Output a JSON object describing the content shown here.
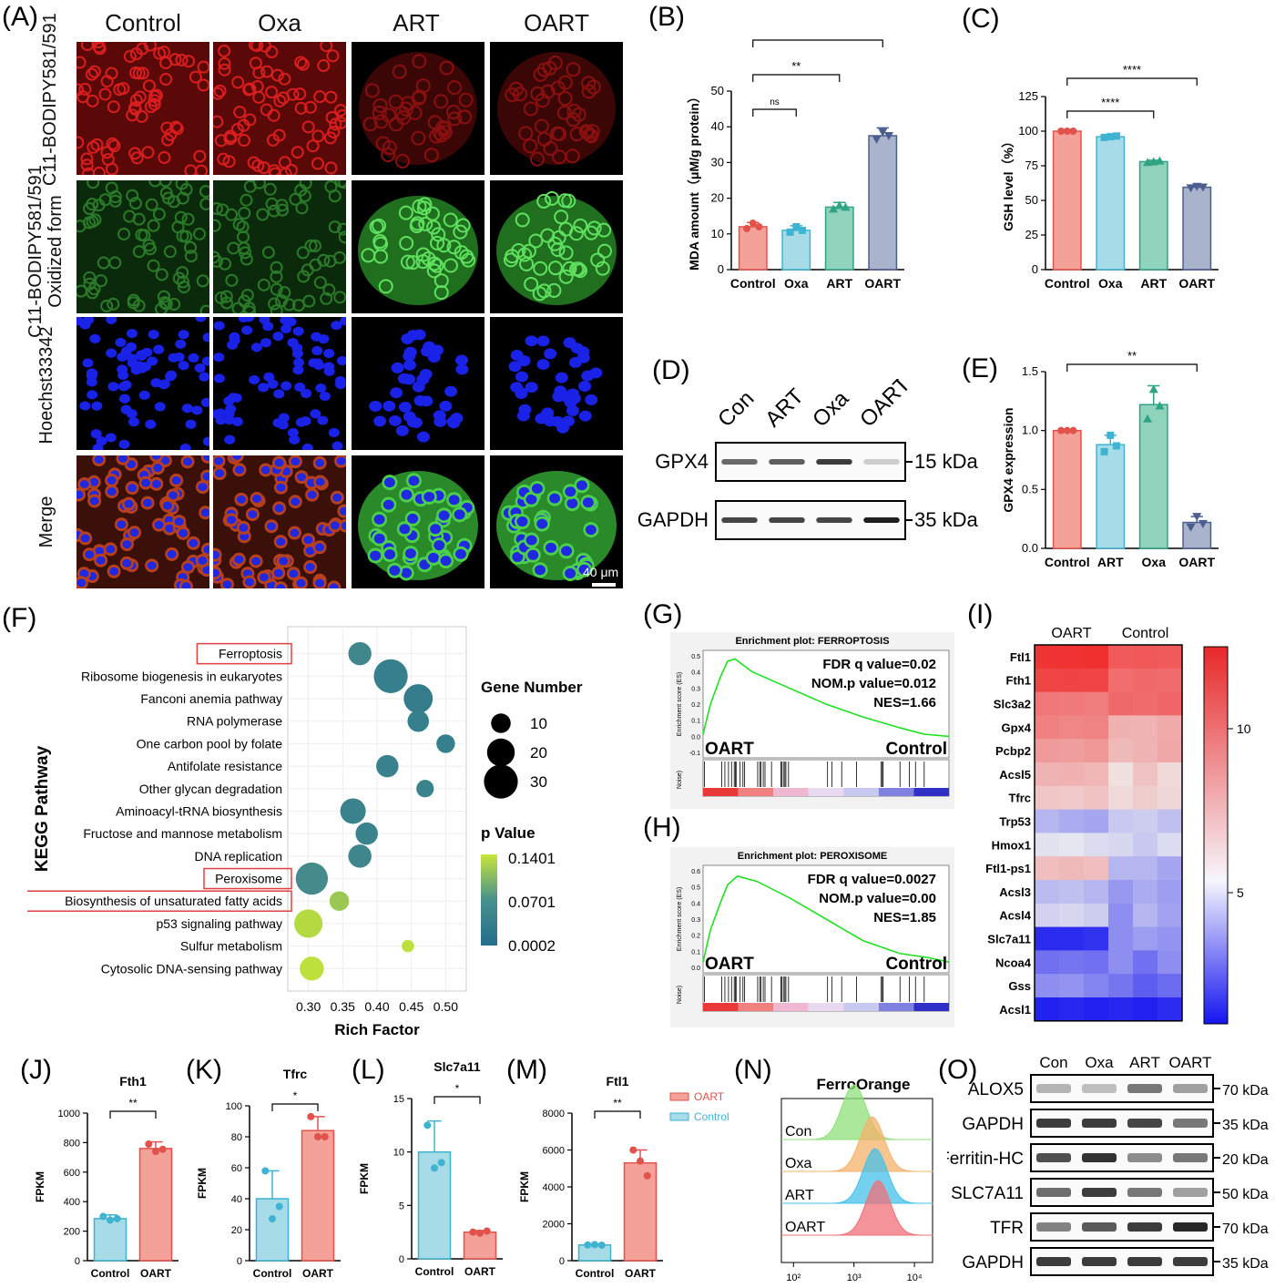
{
  "panel_labels": [
    "(A)",
    "(B)",
    "(C)",
    "(D)",
    "(E)",
    "(F)",
    "(G)",
    "(H)",
    "(I)",
    "(J)",
    "(K)",
    "(L)",
    "(M)",
    "(N)",
    "(O)"
  ],
  "panelA": {
    "columns": [
      "Control",
      "Oxa",
      "ART",
      "OART"
    ],
    "rows": [
      "C11-BODIPY581/591",
      "C11-BODIPY581/591 Oxidized form",
      "Hoechst33342",
      "Merge"
    ],
    "row_colors": [
      "#c01818",
      "#1c8a1c",
      "#1818d8",
      "#c04020"
    ],
    "scalebar": "40 μm"
  },
  "chart_data": [
    {
      "panel": "B",
      "type": "bar",
      "categories": [
        "Control",
        "Oxa",
        "ART",
        "OART"
      ],
      "values": [
        12,
        11,
        17.5,
        37.5
      ],
      "errors": [
        1.2,
        1.3,
        1.3,
        2.2
      ],
      "points": [
        [
          11.5,
          13,
          12
        ],
        [
          10.5,
          12,
          11
        ],
        [
          17,
          18,
          17.5
        ],
        [
          36.5,
          38.5,
          37.5
        ]
      ],
      "colors": [
        "#f4a19a",
        "#a7dbe8",
        "#8fd3bd",
        "#a9b3cc"
      ],
      "edge": [
        "#e0524a",
        "#3fb3d2",
        "#30a383",
        "#4b5e8e"
      ],
      "ylabel": "MDA amount（μM/g protein）",
      "ylim": [
        0,
        50
      ],
      "yticks": [
        0,
        10,
        20,
        30,
        40,
        50
      ],
      "sig": [
        {
          "a": 0,
          "b": 1,
          "t": "ns"
        },
        {
          "a": 0,
          "b": 2,
          "t": "**"
        },
        {
          "a": 0,
          "b": 3,
          "t": "****"
        }
      ]
    },
    {
      "panel": "C",
      "type": "bar",
      "categories": [
        "Control",
        "Oxa",
        "ART",
        "OART"
      ],
      "values": [
        100,
        96,
        78,
        59.5
      ],
      "errors": [
        0.6,
        0.8,
        1,
        1
      ],
      "points": [
        [
          100,
          100,
          100
        ],
        [
          95.5,
          96,
          96.5
        ],
        [
          77.5,
          78,
          78.5
        ],
        [
          59,
          60,
          59.5
        ]
      ],
      "colors": [
        "#f4a19a",
        "#a7dbe8",
        "#8fd3bd",
        "#a9b3cc"
      ],
      "edge": [
        "#e0524a",
        "#3fb3d2",
        "#30a383",
        "#4b5e8e"
      ],
      "ylabel": "GSH level（%）",
      "ylim": [
        0,
        125
      ],
      "yticks": [
        0,
        25,
        50,
        75,
        100,
        125
      ],
      "sig": [
        {
          "a": 0,
          "b": 2,
          "t": "****"
        },
        {
          "a": 0,
          "b": 3,
          "t": "****"
        }
      ]
    },
    {
      "panel": "E",
      "type": "bar",
      "categories": [
        "Control",
        "ART",
        "Oxa",
        "OART"
      ],
      "values": [
        1.0,
        0.88,
        1.22,
        0.22
      ],
      "errors": [
        0.01,
        0.08,
        0.16,
        0.05
      ],
      "points": [
        [
          1.0,
          1.0,
          1.0
        ],
        [
          0.82,
          0.96,
          0.87
        ],
        [
          1.1,
          1.35,
          1.21
        ],
        [
          0.18,
          0.27,
          0.21
        ]
      ],
      "colors": [
        "#f4a19a",
        "#a7dbe8",
        "#8fd3bd",
        "#a9b3cc"
      ],
      "edge": [
        "#e0524a",
        "#3fb3d2",
        "#30a383",
        "#4b5e8e"
      ],
      "ylabel": "GPX4 expression",
      "ylim": [
        0,
        1.5
      ],
      "yticks": [
        "0.0",
        "0.5",
        "1.0",
        "1.5"
      ],
      "sig": [
        {
          "a": 0,
          "b": 3,
          "t": "**"
        }
      ]
    },
    {
      "panel": "F",
      "type": "scatter",
      "title": "",
      "xlabel": "Rich Factor",
      "ylabel": "KEGG Pathway",
      "xlim": [
        0.27,
        0.53
      ],
      "xticks": [
        "0.30",
        "0.35",
        "0.40",
        "0.45",
        "0.50"
      ],
      "pathways": [
        "Ferroptosis",
        "Ribosome biogenesis in eukaryotes",
        "Fanconi anemia pathway",
        "RNA polymerase",
        "One carbon pool by folate",
        "Antifolate resistance",
        "Other glycan degradation",
        "Aminoacyl-tRNA biosynthesis",
        "Fructose and mannose metabolism",
        "DNA replication",
        "Peroxisome",
        "Biosynthesis of unsaturated fatty acids",
        "p53 signaling pathway",
        "Sulfur metabolism",
        "Cytosolic DNA-sensing pathway"
      ],
      "highlighted": [
        0,
        10,
        11
      ],
      "rich_factor": [
        0.375,
        0.42,
        0.46,
        0.46,
        0.5,
        0.415,
        0.47,
        0.365,
        0.385,
        0.375,
        0.305,
        0.345,
        0.3,
        0.445,
        0.305
      ],
      "gene_number": [
        14,
        30,
        22,
        12,
        9,
        13,
        8,
        17,
        13,
        14,
        27,
        10,
        21,
        4,
        15
      ],
      "p_value": [
        0.06,
        0.04,
        0.035,
        0.04,
        0.04,
        0.045,
        0.05,
        0.05,
        0.05,
        0.055,
        0.07,
        0.12,
        0.135,
        0.14,
        0.14
      ],
      "size_legend_title": "Gene Number",
      "size_legend": [
        "10",
        "20",
        "30"
      ],
      "color_legend_title": "p Value",
      "color_legend": [
        "0.1401",
        "0.0701",
        "0.0002"
      ]
    },
    {
      "panel": "G",
      "type": "line",
      "title": "Enrichment plot: FERROPTOSIS",
      "ylabel": "Enrichment score (ES)",
      "yticks": [
        "0.5",
        "0.4",
        "0.3",
        "0.2",
        "0.1",
        "0.0",
        "-0.1"
      ],
      "stats": [
        "FDR q value=0.02",
        "NOM.p value=0.012",
        "NES=1.66"
      ],
      "left_label": "OART",
      "right_label": "Control",
      "bottom_label": "Noise)"
    },
    {
      "panel": "H",
      "type": "line",
      "title": "Enrichment plot: PEROXISOME",
      "ylabel": "Enrichment score (ES)",
      "yticks": [
        "0.6",
        "0.5",
        "0.4",
        "0.3",
        "0.2",
        "0.1",
        "0.0"
      ],
      "stats": [
        "FDR q value=0.0027",
        "NOM.p value=0.00",
        "NES=1.85"
      ],
      "left_label": "OART",
      "right_label": "Control",
      "bottom_label": "Noise)"
    },
    {
      "panel": "I",
      "type": "heatmap",
      "groups": [
        "OART",
        "Control"
      ],
      "genes": [
        "Ftl1",
        "Fth1",
        "Slc3a2",
        "Gpx4",
        "Pcbp2",
        "Acsl5",
        "Tfrc",
        "Trp53",
        "Hmox1",
        "Ftl1-ps1",
        "Acsl3",
        "Acsl4",
        "Slc7a11",
        "Ncoa4",
        "Gss",
        "Acsl1"
      ],
      "values": [
        [
          12.5,
          12.6,
          12.7,
          11.0,
          11.1,
          11.0
        ],
        [
          11.8,
          11.9,
          11.8,
          10.2,
          10.4,
          10.3
        ],
        [
          9.8,
          9.7,
          9.6,
          10.4,
          10.3,
          10.5
        ],
        [
          9.4,
          9.2,
          9.3,
          7.5,
          7.4,
          7.8
        ],
        [
          8.4,
          8.3,
          8.5,
          7.2,
          7.4,
          7.9
        ],
        [
          7.4,
          7.5,
          7.3,
          5.6,
          6.8,
          5.9
        ],
        [
          6.7,
          6.5,
          6.8,
          5.9,
          6.4,
          6.0
        ],
        [
          3.8,
          3.6,
          3.5,
          4.2,
          4.3,
          4.0
        ],
        [
          4.7,
          4.8,
          4.6,
          4.5,
          4.2,
          4.6
        ],
        [
          7.0,
          7.2,
          7.0,
          3.8,
          3.8,
          3.5
        ],
        [
          3.9,
          4.0,
          3.8,
          3.2,
          3.6,
          3.3
        ],
        [
          4.4,
          4.5,
          4.3,
          3.0,
          3.8,
          3.4
        ],
        [
          1.0,
          1.0,
          1.1,
          3.0,
          3.3,
          3.1
        ],
        [
          2.4,
          2.5,
          2.4,
          3.0,
          2.4,
          3.0
        ],
        [
          3.0,
          3.1,
          2.8,
          2.5,
          2.0,
          2.3
        ],
        [
          0.8,
          0.9,
          0.8,
          0.9,
          0.8,
          1.0
        ]
      ],
      "scale_ticks": [
        "10",
        "5"
      ],
      "vrange": [
        0.5,
        13
      ]
    },
    {
      "panel": "J",
      "type": "bar",
      "title": "Fth1",
      "categories": [
        "Control",
        "OART"
      ],
      "values": [
        285,
        760
      ],
      "errors": [
        25,
        45
      ],
      "points": [
        [
          300,
          275,
          285
        ],
        [
          790,
          740,
          755
        ]
      ],
      "ylabel": "FPKM",
      "ylim": [
        0,
        1000
      ],
      "yticks": [
        0,
        200,
        400,
        600,
        800,
        1000
      ],
      "sig": "**"
    },
    {
      "panel": "K",
      "type": "bar",
      "title": "Tfrc",
      "categories": [
        "Control",
        "OART"
      ],
      "values": [
        40,
        84
      ],
      "errors": [
        18,
        9
      ],
      "points": [
        [
          58,
          27,
          35
        ],
        [
          93,
          80,
          80
        ]
      ],
      "ylabel": "FPKM",
      "ylim": [
        0,
        100
      ],
      "yticks": [
        0,
        20,
        40,
        60,
        80,
        100
      ],
      "sig": "*"
    },
    {
      "panel": "L",
      "type": "bar",
      "title": "Slc7a11",
      "categories": [
        "Control",
        "OART"
      ],
      "values": [
        10,
        2.5
      ],
      "errors": [
        2.9,
        0.15
      ],
      "points": [
        [
          12.5,
          8.5,
          9
        ],
        [
          2.5,
          2.4,
          2.6
        ]
      ],
      "ylabel": "FPKM",
      "ylim": [
        0,
        15
      ],
      "yticks": [
        0,
        5,
        10,
        15
      ],
      "sig": "*"
    },
    {
      "panel": "M",
      "type": "bar",
      "title": "Ftl1",
      "categories": [
        "Control",
        "OART"
      ],
      "values": [
        850,
        5300
      ],
      "errors": [
        50,
        700
      ],
      "points": [
        [
          850,
          870,
          840
        ],
        [
          6000,
          5400,
          4600
        ]
      ],
      "ylabel": "FPKM",
      "ylim": [
        0,
        8000
      ],
      "yticks": [
        0,
        2000,
        4000,
        6000,
        8000
      ],
      "sig": "**",
      "legend": [
        "OART",
        "Control"
      ]
    },
    {
      "panel": "N",
      "type": "area",
      "title": "FerroOrange",
      "tracks": [
        "Con",
        "Oxa",
        "ART",
        "OART"
      ],
      "peak_log10": [
        3.0,
        3.3,
        3.35,
        3.4
      ],
      "colors": [
        "#8fe07a",
        "#f4b36b",
        "#45c0ea",
        "#f07078"
      ],
      "xticks": [
        "10²",
        "10³",
        "10⁴"
      ]
    }
  ],
  "panelD": {
    "lanes": [
      "Con",
      "ART",
      "Oxa",
      "OART"
    ],
    "bands": [
      "GPX4",
      "GAPDH"
    ],
    "kda": [
      "15 kDa",
      "35 kDa"
    ],
    "intensity": [
      [
        0.62,
        0.68,
        0.85,
        0.12
      ],
      [
        0.8,
        0.8,
        0.8,
        1.0
      ]
    ]
  },
  "panelO": {
    "lanes": [
      "Con",
      "Oxa",
      "ART",
      "OART"
    ],
    "bands": [
      "ALOX5",
      "GAPDH",
      "Ferritin-HC",
      "SLC7A11",
      "TFR",
      "GAPDH"
    ],
    "kda": [
      "70 kDa",
      "35 kDa",
      "20 kDa",
      "50 kDa",
      "70 kDa",
      "35 kDa"
    ],
    "intensity": [
      [
        0.25,
        0.2,
        0.55,
        0.35
      ],
      [
        0.85,
        0.85,
        0.8,
        0.55
      ],
      [
        0.75,
        0.9,
        0.45,
        0.55
      ],
      [
        0.6,
        0.85,
        0.55,
        0.35
      ],
      [
        0.5,
        0.7,
        0.85,
        0.95
      ],
      [
        0.85,
        0.85,
        0.85,
        0.85
      ]
    ]
  }
}
